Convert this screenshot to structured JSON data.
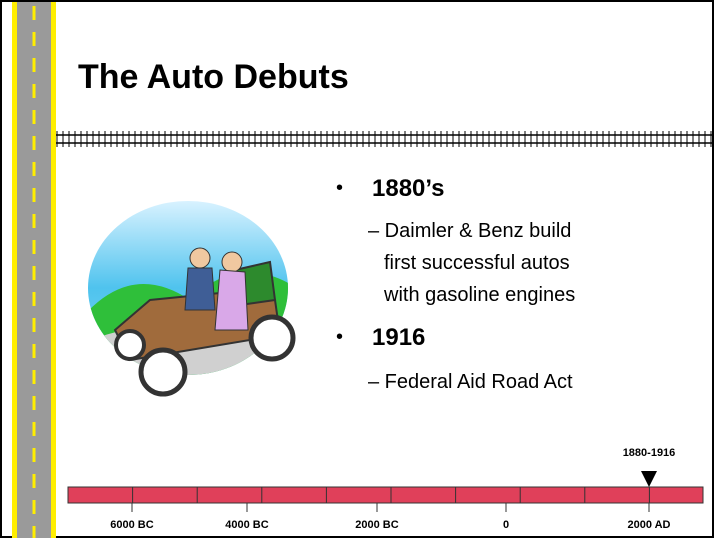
{
  "header": {
    "title": "The Auto Debuts"
  },
  "bullets": [
    {
      "heading": "1880’s",
      "sub": [
        "– Daimler & Benz build",
        "first successful autos",
        "with gasoline engines"
      ]
    },
    {
      "heading": "1916",
      "sub": [
        "– Federal Aid Road Act"
      ]
    }
  ],
  "timeline": {
    "labels": [
      "6000 BC",
      "4000 BC",
      "2000 BC",
      "0",
      "2000 AD"
    ],
    "marker": "1880-1916"
  }
}
